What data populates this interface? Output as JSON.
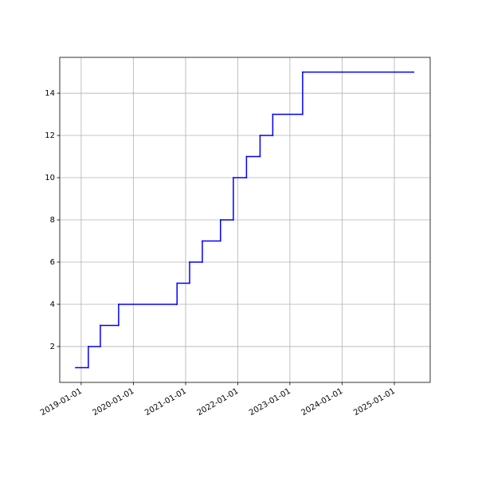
{
  "chart_data": {
    "type": "step",
    "color": "#0000ff",
    "grid": true,
    "x": [
      "2018-11-23",
      "2019-02-20",
      "2019-05-15",
      "2019-09-20",
      "2020-11-02",
      "2021-01-29",
      "2021-04-28",
      "2021-09-02",
      "2021-12-01",
      "2022-03-03",
      "2022-06-06",
      "2022-09-03",
      "2023-03-31",
      "2025-05-15"
    ],
    "values": [
      1,
      2,
      3,
      4,
      5,
      6,
      7,
      8,
      10,
      11,
      12,
      13,
      15,
      15
    ],
    "xlim": [
      "2018-08-04",
      "2025-09-09"
    ],
    "xticks": [
      "2019-01-01",
      "2020-01-01",
      "2021-01-01",
      "2022-01-01",
      "2023-01-01",
      "2024-01-01",
      "2025-01-01"
    ],
    "ylim": [
      0.3,
      15.7
    ],
    "yticks": [
      2,
      4,
      6,
      8,
      10,
      12,
      14
    ]
  }
}
